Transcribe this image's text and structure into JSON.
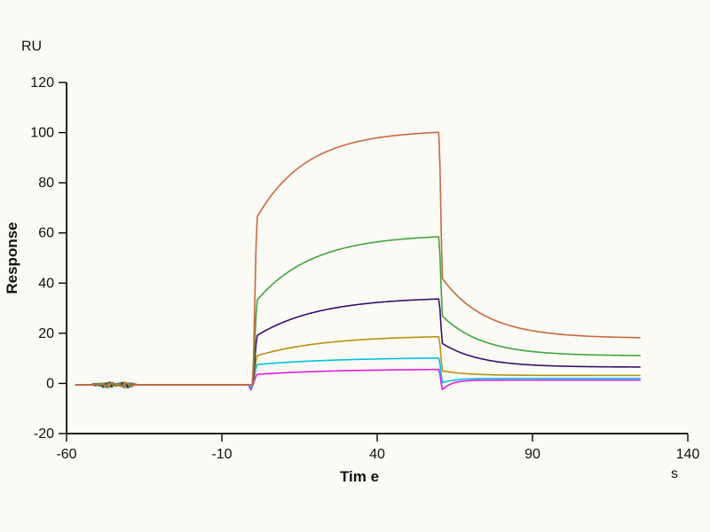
{
  "chart": {
    "ru_label": "RU",
    "ylabel": "Response",
    "xlabel": "Tim e",
    "x_unit_label": "s"
  },
  "chart_data": {
    "type": "line",
    "title": "",
    "xlabel": "Tim e",
    "x_unit": "s",
    "ylabel": "Response",
    "y_unit": "RU",
    "xlim": [
      -60,
      140
    ],
    "ylim": [
      -20,
      120
    ],
    "x_ticks": [
      -60,
      -10,
      40,
      90,
      140
    ],
    "y_ticks": [
      -20,
      0,
      20,
      40,
      60,
      80,
      100,
      120
    ],
    "grid": false,
    "legend": "none",
    "axis_color": "#000000",
    "background": "#fbfaf4",
    "timeline": {
      "trace_start": -57,
      "association_start": 0,
      "dissociation_start": 60,
      "trace_end": 125,
      "noise_window": [
        -52,
        -37
      ]
    },
    "series": [
      {
        "name": "sensorgram-curve-1-highest",
        "color": "#c8693f",
        "baseline": -0.5,
        "assoc_jump": 66,
        "peak": 101,
        "tau_assoc": 16,
        "post_drop": 42,
        "diss_end": 18,
        "tau_diss": 14,
        "start_dip": 0,
        "key_points": [
          [
            -57,
            -0.5
          ],
          [
            0,
            -0.5
          ],
          [
            1,
            66
          ],
          [
            60,
            100
          ],
          [
            62,
            42
          ],
          [
            125,
            18
          ]
        ]
      },
      {
        "name": "sensorgram-curve-2",
        "color": "#43a43a",
        "baseline": -0.5,
        "assoc_jump": 33,
        "peak": 59.5,
        "tau_assoc": 18,
        "post_drop": 27,
        "diss_end": 11,
        "tau_diss": 13,
        "start_dip": 0,
        "key_points": [
          [
            -57,
            -0.5
          ],
          [
            0,
            -0.5
          ],
          [
            1,
            33
          ],
          [
            60,
            58
          ],
          [
            62,
            27
          ],
          [
            125,
            11
          ]
        ]
      },
      {
        "name": "sensorgram-curve-3",
        "color": "#3a0e6e",
        "baseline": -0.5,
        "assoc_jump": 19,
        "peak": 34.5,
        "tau_assoc": 20,
        "post_drop": 16,
        "diss_end": 6.5,
        "tau_diss": 12,
        "start_dip": 0,
        "key_points": [
          [
            -57,
            -0.5
          ],
          [
            0,
            -0.5
          ],
          [
            1,
            19
          ],
          [
            60,
            33.5
          ],
          [
            62,
            16
          ],
          [
            125,
            6.5
          ]
        ]
      },
      {
        "name": "sensorgram-curve-4",
        "color": "#b5930f",
        "baseline": -0.5,
        "assoc_jump": 11,
        "peak": 19.2,
        "tau_assoc": 22,
        "post_drop": 5,
        "diss_end": 3.2,
        "tau_diss": 8,
        "start_dip": 0,
        "key_points": [
          [
            -57,
            -0.5
          ],
          [
            0,
            -0.5
          ],
          [
            1,
            11
          ],
          [
            60,
            18.6
          ],
          [
            62,
            5
          ],
          [
            125,
            3.2
          ]
        ]
      },
      {
        "name": "sensorgram-curve-5",
        "color": "#00bfe8",
        "baseline": -0.5,
        "assoc_jump": 7.5,
        "peak": 10.4,
        "tau_assoc": 26,
        "post_drop": 0.2,
        "diss_end": 2.0,
        "tau_diss": 4,
        "start_dip": -1.2,
        "key_points": [
          [
            -57,
            -0.5
          ],
          [
            0,
            -0.5
          ],
          [
            1,
            7.5
          ],
          [
            60,
            10
          ],
          [
            61,
            0.2
          ],
          [
            125,
            2
          ]
        ]
      },
      {
        "name": "sensorgram-curve-6-lowest",
        "color": "#de1edd",
        "baseline": -0.6,
        "assoc_jump": 3.6,
        "peak": 5.8,
        "tau_assoc": 26,
        "post_drop": -2.6,
        "diss_end": 1.3,
        "tau_diss": 3,
        "start_dip": -2.2,
        "key_points": [
          [
            -57,
            -0.6
          ],
          [
            -0.7,
            -2.8
          ],
          [
            1,
            3.6
          ],
          [
            60,
            5.6
          ],
          [
            61,
            -2.6
          ],
          [
            125,
            1.3
          ]
        ]
      }
    ]
  }
}
